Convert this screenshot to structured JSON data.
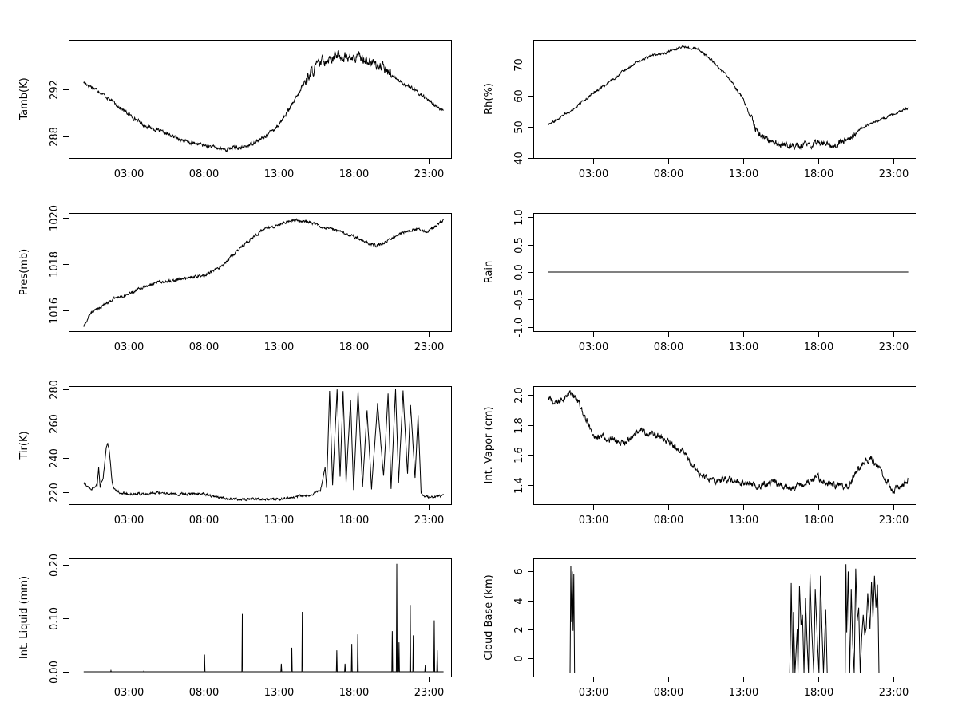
{
  "chart_data": [
    {
      "type": "line",
      "ylabel": "Tamb(K)",
      "xticks": [
        "03:00",
        "08:00",
        "13:00",
        "18:00",
        "23:00"
      ],
      "yticks": [
        288,
        292
      ],
      "xlim": [
        -1.0,
        24.5
      ],
      "ylim": [
        286.2,
        296.2
      ],
      "x": [
        0,
        1,
        2,
        3,
        4,
        5,
        6,
        7,
        8,
        9,
        9.5,
        10,
        10.5,
        11,
        12,
        13,
        14,
        14.5,
        15,
        15.5,
        16,
        17,
        18,
        18.5,
        19,
        20,
        21,
        22,
        23,
        24
      ],
      "y": [
        292.6,
        291.9,
        290.9,
        289.9,
        289.0,
        288.5,
        288.0,
        287.5,
        287.3,
        287.0,
        286.9,
        287.1,
        287.0,
        287.3,
        287.9,
        289.0,
        290.9,
        292.0,
        293.2,
        293.9,
        294.5,
        294.9,
        294.6,
        294.8,
        294.4,
        293.8,
        292.8,
        292.0,
        291.1,
        290.1
      ],
      "noise": 0.35,
      "noise_range": [
        14.5,
        20.5
      ]
    },
    {
      "type": "line",
      "ylabel": "Rh(%)",
      "xticks": [
        "03:00",
        "08:00",
        "13:00",
        "18:00",
        "23:00"
      ],
      "yticks": [
        40,
        50,
        60,
        70
      ],
      "xlim": [
        -1.0,
        24.5
      ],
      "ylim": [
        40,
        78
      ],
      "x": [
        0,
        0.5,
        1,
        1.5,
        2,
        2.5,
        3,
        4,
        5,
        6,
        7,
        8,
        9,
        10,
        11,
        12,
        13,
        13.5,
        14,
        14.5,
        15,
        16,
        17,
        18,
        19,
        20,
        21,
        22,
        23,
        24
      ],
      "y": [
        51,
        52,
        54,
        55,
        57,
        59,
        61,
        64,
        68,
        71,
        73,
        74,
        76,
        75,
        71,
        66,
        59,
        53,
        48,
        46,
        45,
        44,
        44,
        45,
        44,
        46,
        50,
        52,
        54,
        56
      ],
      "noise": 0.9,
      "noise_range": [
        13.5,
        20.5
      ]
    },
    {
      "type": "line",
      "ylabel": "Pres(mb)",
      "xticks": [
        "03:00",
        "08:00",
        "13:00",
        "18:00",
        "23:00"
      ],
      "yticks": [
        1016,
        1018,
        1020
      ],
      "xlim": [
        -1.0,
        24.5
      ],
      "ylim": [
        1015.1,
        1020.2
      ],
      "x": [
        0,
        0.5,
        1,
        2,
        3,
        4,
        5,
        6,
        7,
        8,
        9,
        10,
        11,
        12,
        13,
        14,
        15,
        16,
        17,
        18,
        19,
        19.5,
        20,
        21,
        22,
        23,
        24
      ],
      "y": [
        1015.3,
        1015.9,
        1016.1,
        1016.5,
        1016.7,
        1017.0,
        1017.2,
        1017.3,
        1017.4,
        1017.5,
        1017.8,
        1018.4,
        1019.0,
        1019.5,
        1019.7,
        1019.9,
        1019.8,
        1019.6,
        1019.4,
        1019.2,
        1018.9,
        1018.8,
        1018.9,
        1019.3,
        1019.5,
        1019.4,
        1019.9
      ],
      "noise": 0.05
    },
    {
      "type": "line",
      "ylabel": "Rain",
      "xticks": [
        "03:00",
        "08:00",
        "13:00",
        "18:00",
        "23:00"
      ],
      "yticks": [
        "-1.0",
        "-0.5",
        "0.0",
        "0.5",
        "1.0"
      ],
      "ytick_values": [
        -1.0,
        -0.5,
        0.0,
        0.5,
        1.0
      ],
      "xlim": [
        -1.0,
        24.5
      ],
      "ylim": [
        -1.08,
        1.08
      ],
      "x": [
        0,
        24
      ],
      "y": [
        0,
        0
      ]
    },
    {
      "type": "line",
      "ylabel": "Tir(K)",
      "xticks": [
        "03:00",
        "08:00",
        "13:00",
        "18:00",
        "23:00"
      ],
      "yticks": [
        220,
        240,
        260,
        280
      ],
      "xlim": [
        -1.0,
        24.5
      ],
      "ylim": [
        213,
        282
      ],
      "x": [
        0,
        0.5,
        0.9,
        1.0,
        1.1,
        1.3,
        1.5,
        1.6,
        1.7,
        1.9,
        2.1,
        2.4,
        3,
        4,
        5,
        6,
        7,
        8,
        9,
        10,
        11,
        12,
        13,
        14,
        15,
        15.8,
        16.1,
        16.2,
        16.4,
        16.6,
        16.9,
        17.1,
        17.3,
        17.5,
        17.8,
        18.0,
        18.3,
        18.6,
        18.9,
        19.2,
        19.6,
        20.0,
        20.3,
        20.5,
        20.8,
        21.0,
        21.3,
        21.6,
        21.8,
        22.1,
        22.3,
        22.5,
        22.7,
        23,
        24
      ],
      "y": [
        225,
        222,
        224,
        235,
        223,
        228,
        246,
        249,
        245,
        225,
        221,
        220,
        219,
        219,
        220,
        219,
        219,
        219,
        217,
        216,
        216,
        216,
        216,
        217,
        218,
        221,
        235,
        222,
        279,
        224,
        280,
        229,
        279,
        226,
        274,
        221,
        279,
        223,
        268,
        222,
        272,
        229,
        278,
        222,
        280,
        226,
        279,
        231,
        271,
        228,
        265,
        220,
        218,
        217,
        218
      ],
      "noise": 0.6
    },
    {
      "type": "line",
      "ylabel": "Int. Vapor (cm)",
      "xticks": [
        "03:00",
        "08:00",
        "13:00",
        "18:00",
        "23:00"
      ],
      "yticks": [
        "1.4",
        "1.6",
        "1.8",
        "2.0"
      ],
      "ytick_values": [
        1.4,
        1.6,
        1.8,
        2.0
      ],
      "xlim": [
        -1.0,
        24.5
      ],
      "ylim": [
        1.27,
        2.06
      ],
      "x": [
        0,
        0.5,
        1,
        1.5,
        2,
        2.5,
        3,
        3.5,
        4,
        5,
        6,
        7,
        7.5,
        8,
        9,
        10,
        11,
        12,
        13,
        14,
        15,
        16,
        17,
        18,
        19,
        20,
        20.5,
        21,
        21.5,
        22,
        22.5,
        23,
        24
      ],
      "y": [
        1.98,
        1.94,
        1.98,
        2.01,
        1.95,
        1.84,
        1.74,
        1.71,
        1.71,
        1.67,
        1.76,
        1.74,
        1.72,
        1.69,
        1.62,
        1.48,
        1.43,
        1.44,
        1.41,
        1.39,
        1.42,
        1.37,
        1.41,
        1.44,
        1.4,
        1.39,
        1.47,
        1.55,
        1.58,
        1.52,
        1.44,
        1.36,
        1.43
      ],
      "noise": 0.018
    },
    {
      "type": "line",
      "ylabel": "Int. Liquid (mm)",
      "xticks": [
        "03:00",
        "08:00",
        "13:00",
        "18:00",
        "23:00"
      ],
      "yticks": [
        "0.00",
        "0.10",
        "0.20"
      ],
      "ytick_values": [
        0.0,
        0.1,
        0.2
      ],
      "xlim": [
        -1.0,
        24.5
      ],
      "ylim": [
        -0.009,
        0.212
      ],
      "x": [
        0,
        1.8,
        1.82,
        1.84,
        4,
        4.02,
        4.04,
        8.03,
        8.06,
        8.09,
        10.55,
        10.58,
        10.61,
        13.15,
        13.18,
        13.21,
        13.85,
        13.88,
        13.91,
        14.55,
        14.58,
        14.61,
        16.85,
        16.88,
        16.91,
        17.4,
        17.43,
        17.46,
        17.85,
        17.88,
        17.91,
        18.25,
        18.28,
        18.31,
        20.55,
        20.58,
        20.61,
        20.85,
        20.88,
        20.91,
        21.0,
        21.03,
        21.06,
        21.75,
        21.78,
        21.81,
        21.95,
        21.98,
        22.01,
        22.75,
        22.78,
        22.81,
        23.35,
        23.38,
        23.41,
        23.55,
        23.58,
        23.61,
        24
      ],
      "y": [
        0,
        0,
        0.002,
        0,
        0,
        0.002,
        0,
        0,
        0.032,
        0,
        0,
        0.108,
        0,
        0,
        0.015,
        0,
        0,
        0.045,
        0,
        0,
        0.112,
        0,
        0,
        0.04,
        0,
        0,
        0.015,
        0,
        0,
        0.052,
        0,
        0,
        0.07,
        0,
        0,
        0.076,
        0,
        0,
        0.202,
        0,
        0,
        0.055,
        0,
        0,
        0.125,
        0,
        0,
        0.068,
        0,
        0,
        0.012,
        0,
        0,
        0.096,
        0,
        0,
        0.04,
        0,
        0
      ]
    },
    {
      "type": "line",
      "ylabel": "Cloud Base (km)",
      "xticks": [
        "03:00",
        "08:00",
        "13:00",
        "18:00",
        "23:00"
      ],
      "yticks": [
        0,
        2,
        4,
        6
      ],
      "xlim": [
        -1.0,
        24.5
      ],
      "ylim": [
        -1.25,
        6.9
      ],
      "x": [
        0,
        1.45,
        1.5,
        1.55,
        1.6,
        1.65,
        1.7,
        1.75,
        1.8,
        16.1,
        16.15,
        16.2,
        16.3,
        16.35,
        16.45,
        16.6,
        16.65,
        16.75,
        16.85,
        16.95,
        17.05,
        17.15,
        17.25,
        17.35,
        17.45,
        17.55,
        17.7,
        17.8,
        17.95,
        18.05,
        18.15,
        18.25,
        18.35,
        18.5,
        18.6,
        18.7,
        19.8,
        19.85,
        19.9,
        20.0,
        20.1,
        20.2,
        20.3,
        20.4,
        20.5,
        20.6,
        20.7,
        20.8,
        20.9,
        21.0,
        21.1,
        21.2,
        21.3,
        21.45,
        21.55,
        21.65,
        21.75,
        21.85,
        21.95,
        22.0,
        22.05,
        24
      ],
      "y": [
        -1,
        -1,
        6.4,
        2.5,
        6.0,
        1.9,
        5.8,
        -1,
        -1,
        -1,
        1.5,
        5.2,
        -1,
        3.2,
        -1,
        2.0,
        -1,
        5.0,
        2.3,
        3.0,
        -1,
        4.2,
        1.3,
        -1,
        5.8,
        2.4,
        -1,
        4.8,
        1.1,
        -1,
        5.7,
        2.0,
        -1,
        3.4,
        -1,
        -1,
        -1,
        6.5,
        1.8,
        6.0,
        -1,
        4.8,
        1.0,
        -1,
        6.2,
        2.6,
        3.5,
        -1,
        1.5,
        3.0,
        1.6,
        2.1,
        4.5,
        2.0,
        5.3,
        2.8,
        5.7,
        3.5,
        5.1,
        2.7,
        -1,
        -1
      ],
      "noise": 0
    }
  ]
}
